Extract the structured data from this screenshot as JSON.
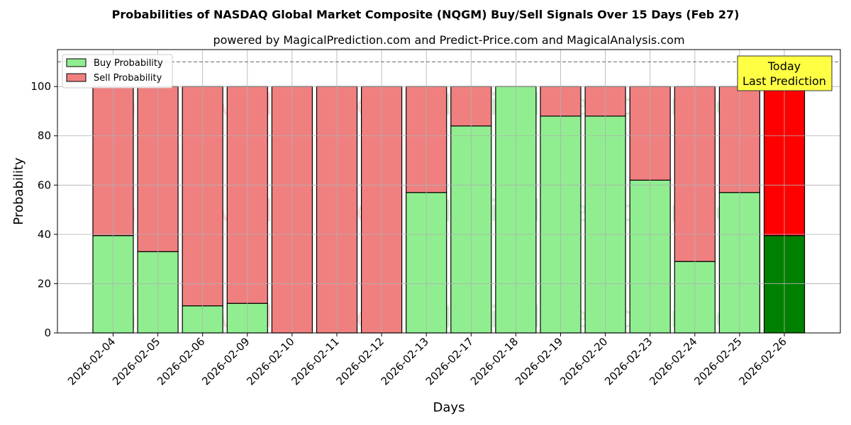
{
  "chart_data": {
    "type": "bar",
    "stacked": true,
    "title": "Probabilities of NASDAQ Global Market Composite (NQGM) Buy/Sell Signals Over 15 Days (Feb 27)",
    "subtitle": "powered by MagicalPrediction.com and Predict-Price.com and MagicalAnalysis.com",
    "xlabel": "Days",
    "ylabel": "Probability",
    "ylim": [
      0,
      115
    ],
    "yticks": [
      0,
      20,
      40,
      60,
      80,
      100
    ],
    "grid": true,
    "legend_position": "top-left",
    "reference_line": 110,
    "categories": [
      "2026-02-04",
      "2026-02-05",
      "2026-02-06",
      "2026-02-09",
      "2026-02-10",
      "2026-02-11",
      "2026-02-12",
      "2026-02-13",
      "2026-02-17",
      "2026-02-18",
      "2026-02-19",
      "2026-02-20",
      "2026-02-23",
      "2026-02-24",
      "2026-02-25",
      "2026-02-26"
    ],
    "series": [
      {
        "name": "Buy Probability",
        "color": "#90ee90",
        "highlight_color": "#008000",
        "values": [
          39.5,
          33,
          11,
          12,
          0,
          0,
          0,
          57,
          84,
          100,
          88,
          88,
          62,
          29,
          57,
          39.5
        ]
      },
      {
        "name": "Sell Probability",
        "color": "#f08080",
        "highlight_color": "#ff0000",
        "values": [
          60.5,
          67,
          89,
          88,
          100,
          100,
          100,
          43,
          16,
          0,
          12,
          12,
          38,
          71,
          43,
          60.5
        ]
      }
    ],
    "highlight_index": 15,
    "annotation": {
      "line1": "Today",
      "line2": "Last Prediction",
      "background": "#ffff44"
    },
    "watermarks": [
      "MagicalAnalysis.com",
      "MagicalPrediction.com"
    ]
  }
}
